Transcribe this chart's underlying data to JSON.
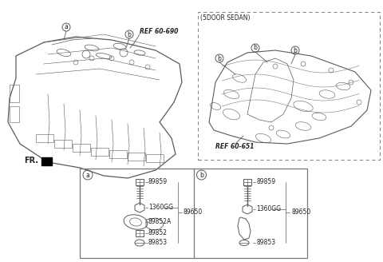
{
  "bg_color": "#ffffff",
  "fig_width": 4.8,
  "fig_height": 3.28,
  "dpi": 100,
  "ref_left": "REF 60-690",
  "ref_right": "REF 60-651",
  "sedan_label": "(5DOOR SEDAN)",
  "fr_label": "FR.",
  "line_color": "#5a5a5a",
  "text_color": "#222222",
  "parts_a_codes": [
    "89859",
    "1360GG",
    "89852A",
    "89852",
    "89853"
  ],
  "parts_b_codes": [
    "89859",
    "1360GG",
    "89853"
  ],
  "parts_right_code": "89650"
}
